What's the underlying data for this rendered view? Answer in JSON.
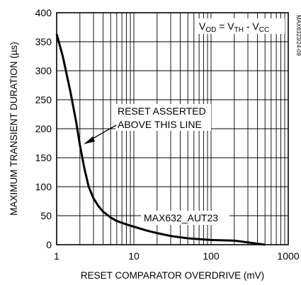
{
  "chart_data": {
    "type": "line",
    "x_scale": "log",
    "xlim": [
      1,
      1000
    ],
    "ylim": [
      0,
      400
    ],
    "xlabel": "RESET COMPARATOR OVERDRIVE (mV)",
    "ylabel": "MAXIMUM TRANSIENT DURATION (µs)",
    "x_ticks": [
      1,
      10,
      100,
      1000
    ],
    "x_tick_labels": [
      "1",
      "10",
      "100",
      "1000"
    ],
    "y_ticks": [
      0,
      50,
      100,
      150,
      200,
      250,
      300,
      350,
      400
    ],
    "y_tick_labels": [
      "0",
      "50",
      "100",
      "150",
      "200",
      "250",
      "300",
      "350",
      "400"
    ],
    "grid": true,
    "equation": {
      "main": "V",
      "main_sub": "OD",
      "eq": " = V",
      "sub2": "TH",
      "minus": " - V",
      "sub3": "CC"
    },
    "part_label": "MAX632_AUT23",
    "annotation": [
      "RESET ASSERTED",
      "ABOVE THIS LINE"
    ],
    "side_id": "MAX6323/24-09",
    "series": [
      {
        "x": [
          1,
          1.2,
          1.5,
          1.8,
          2,
          2.3,
          2.6,
          3,
          3.5,
          4,
          5,
          6,
          8,
          10,
          15,
          20,
          30,
          50,
          100,
          200,
          300,
          500
        ],
        "y": [
          363,
          325,
          265,
          210,
          172,
          130,
          100,
          80,
          66,
          57,
          47,
          41,
          35,
          31,
          24,
          20,
          15,
          11,
          8,
          7,
          4,
          0
        ]
      }
    ]
  }
}
